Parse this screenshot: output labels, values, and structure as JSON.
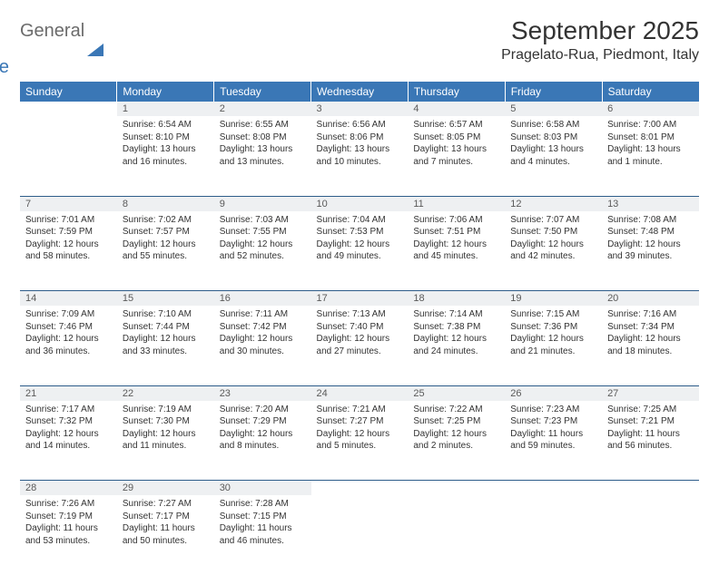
{
  "brand": {
    "part1": "General",
    "part2": "Blue"
  },
  "title": "September 2025",
  "location": "Pragelato-Rua, Piedmont, Italy",
  "colors": {
    "header_bg": "#3a77b6",
    "header_text": "#ffffff",
    "daynum_bg": "#eef0f2",
    "row_divider": "#2e5d8a",
    "body_text": "#333333",
    "logo_gray": "#6b6b6b",
    "logo_blue": "#3a77b6"
  },
  "typography": {
    "month_title_fontsize": 28,
    "location_fontsize": 16,
    "weekday_fontsize": 12,
    "daynum_fontsize": 11,
    "cell_fontsize": 10
  },
  "weekdays": [
    "Sunday",
    "Monday",
    "Tuesday",
    "Wednesday",
    "Thursday",
    "Friday",
    "Saturday"
  ],
  "weeks": [
    {
      "nums": [
        "",
        "1",
        "2",
        "3",
        "4",
        "5",
        "6"
      ],
      "cells": [
        null,
        {
          "sunrise": "Sunrise: 6:54 AM",
          "sunset": "Sunset: 8:10 PM",
          "daylight": "Daylight: 13 hours and 16 minutes."
        },
        {
          "sunrise": "Sunrise: 6:55 AM",
          "sunset": "Sunset: 8:08 PM",
          "daylight": "Daylight: 13 hours and 13 minutes."
        },
        {
          "sunrise": "Sunrise: 6:56 AM",
          "sunset": "Sunset: 8:06 PM",
          "daylight": "Daylight: 13 hours and 10 minutes."
        },
        {
          "sunrise": "Sunrise: 6:57 AM",
          "sunset": "Sunset: 8:05 PM",
          "daylight": "Daylight: 13 hours and 7 minutes."
        },
        {
          "sunrise": "Sunrise: 6:58 AM",
          "sunset": "Sunset: 8:03 PM",
          "daylight": "Daylight: 13 hours and 4 minutes."
        },
        {
          "sunrise": "Sunrise: 7:00 AM",
          "sunset": "Sunset: 8:01 PM",
          "daylight": "Daylight: 13 hours and 1 minute."
        }
      ]
    },
    {
      "nums": [
        "7",
        "8",
        "9",
        "10",
        "11",
        "12",
        "13"
      ],
      "cells": [
        {
          "sunrise": "Sunrise: 7:01 AM",
          "sunset": "Sunset: 7:59 PM",
          "daylight": "Daylight: 12 hours and 58 minutes."
        },
        {
          "sunrise": "Sunrise: 7:02 AM",
          "sunset": "Sunset: 7:57 PM",
          "daylight": "Daylight: 12 hours and 55 minutes."
        },
        {
          "sunrise": "Sunrise: 7:03 AM",
          "sunset": "Sunset: 7:55 PM",
          "daylight": "Daylight: 12 hours and 52 minutes."
        },
        {
          "sunrise": "Sunrise: 7:04 AM",
          "sunset": "Sunset: 7:53 PM",
          "daylight": "Daylight: 12 hours and 49 minutes."
        },
        {
          "sunrise": "Sunrise: 7:06 AM",
          "sunset": "Sunset: 7:51 PM",
          "daylight": "Daylight: 12 hours and 45 minutes."
        },
        {
          "sunrise": "Sunrise: 7:07 AM",
          "sunset": "Sunset: 7:50 PM",
          "daylight": "Daylight: 12 hours and 42 minutes."
        },
        {
          "sunrise": "Sunrise: 7:08 AM",
          "sunset": "Sunset: 7:48 PM",
          "daylight": "Daylight: 12 hours and 39 minutes."
        }
      ]
    },
    {
      "nums": [
        "14",
        "15",
        "16",
        "17",
        "18",
        "19",
        "20"
      ],
      "cells": [
        {
          "sunrise": "Sunrise: 7:09 AM",
          "sunset": "Sunset: 7:46 PM",
          "daylight": "Daylight: 12 hours and 36 minutes."
        },
        {
          "sunrise": "Sunrise: 7:10 AM",
          "sunset": "Sunset: 7:44 PM",
          "daylight": "Daylight: 12 hours and 33 minutes."
        },
        {
          "sunrise": "Sunrise: 7:11 AM",
          "sunset": "Sunset: 7:42 PM",
          "daylight": "Daylight: 12 hours and 30 minutes."
        },
        {
          "sunrise": "Sunrise: 7:13 AM",
          "sunset": "Sunset: 7:40 PM",
          "daylight": "Daylight: 12 hours and 27 minutes."
        },
        {
          "sunrise": "Sunrise: 7:14 AM",
          "sunset": "Sunset: 7:38 PM",
          "daylight": "Daylight: 12 hours and 24 minutes."
        },
        {
          "sunrise": "Sunrise: 7:15 AM",
          "sunset": "Sunset: 7:36 PM",
          "daylight": "Daylight: 12 hours and 21 minutes."
        },
        {
          "sunrise": "Sunrise: 7:16 AM",
          "sunset": "Sunset: 7:34 PM",
          "daylight": "Daylight: 12 hours and 18 minutes."
        }
      ]
    },
    {
      "nums": [
        "21",
        "22",
        "23",
        "24",
        "25",
        "26",
        "27"
      ],
      "cells": [
        {
          "sunrise": "Sunrise: 7:17 AM",
          "sunset": "Sunset: 7:32 PM",
          "daylight": "Daylight: 12 hours and 14 minutes."
        },
        {
          "sunrise": "Sunrise: 7:19 AM",
          "sunset": "Sunset: 7:30 PM",
          "daylight": "Daylight: 12 hours and 11 minutes."
        },
        {
          "sunrise": "Sunrise: 7:20 AM",
          "sunset": "Sunset: 7:29 PM",
          "daylight": "Daylight: 12 hours and 8 minutes."
        },
        {
          "sunrise": "Sunrise: 7:21 AM",
          "sunset": "Sunset: 7:27 PM",
          "daylight": "Daylight: 12 hours and 5 minutes."
        },
        {
          "sunrise": "Sunrise: 7:22 AM",
          "sunset": "Sunset: 7:25 PM",
          "daylight": "Daylight: 12 hours and 2 minutes."
        },
        {
          "sunrise": "Sunrise: 7:23 AM",
          "sunset": "Sunset: 7:23 PM",
          "daylight": "Daylight: 11 hours and 59 minutes."
        },
        {
          "sunrise": "Sunrise: 7:25 AM",
          "sunset": "Sunset: 7:21 PM",
          "daylight": "Daylight: 11 hours and 56 minutes."
        }
      ]
    },
    {
      "nums": [
        "28",
        "29",
        "30",
        "",
        "",
        "",
        ""
      ],
      "cells": [
        {
          "sunrise": "Sunrise: 7:26 AM",
          "sunset": "Sunset: 7:19 PM",
          "daylight": "Daylight: 11 hours and 53 minutes."
        },
        {
          "sunrise": "Sunrise: 7:27 AM",
          "sunset": "Sunset: 7:17 PM",
          "daylight": "Daylight: 11 hours and 50 minutes."
        },
        {
          "sunrise": "Sunrise: 7:28 AM",
          "sunset": "Sunset: 7:15 PM",
          "daylight": "Daylight: 11 hours and 46 minutes."
        },
        null,
        null,
        null,
        null
      ]
    }
  ]
}
